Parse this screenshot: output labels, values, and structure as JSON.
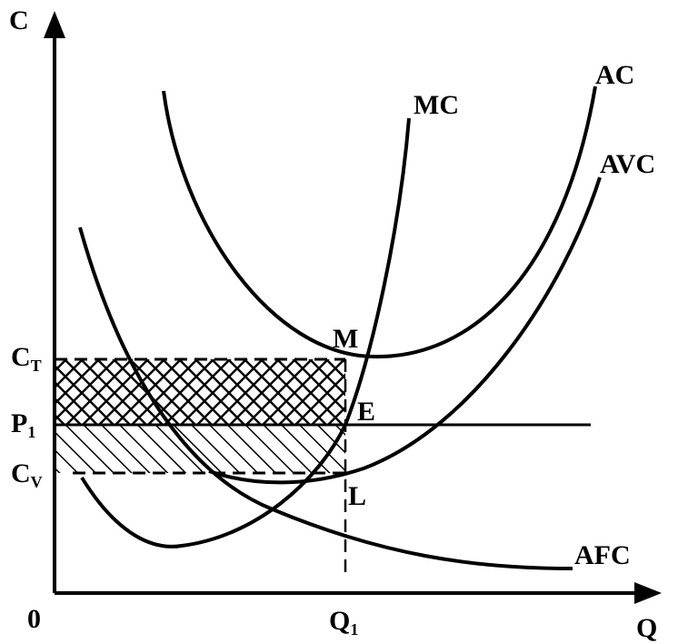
{
  "axes": {
    "y": "C",
    "x": "Q",
    "origin": "0"
  },
  "curves": {
    "mc": "MC",
    "ac": "AC",
    "avc": "AVC",
    "afc": "AFC"
  },
  "points": {
    "m": "M",
    "e": "E",
    "l": "L"
  },
  "levels": [
    {
      "text": "C",
      "sub": "T"
    },
    {
      "text": "P",
      "sub": "1"
    },
    {
      "text": "C",
      "sub": "V"
    }
  ],
  "quantity": {
    "text": "Q",
    "sub": "1"
  }
}
